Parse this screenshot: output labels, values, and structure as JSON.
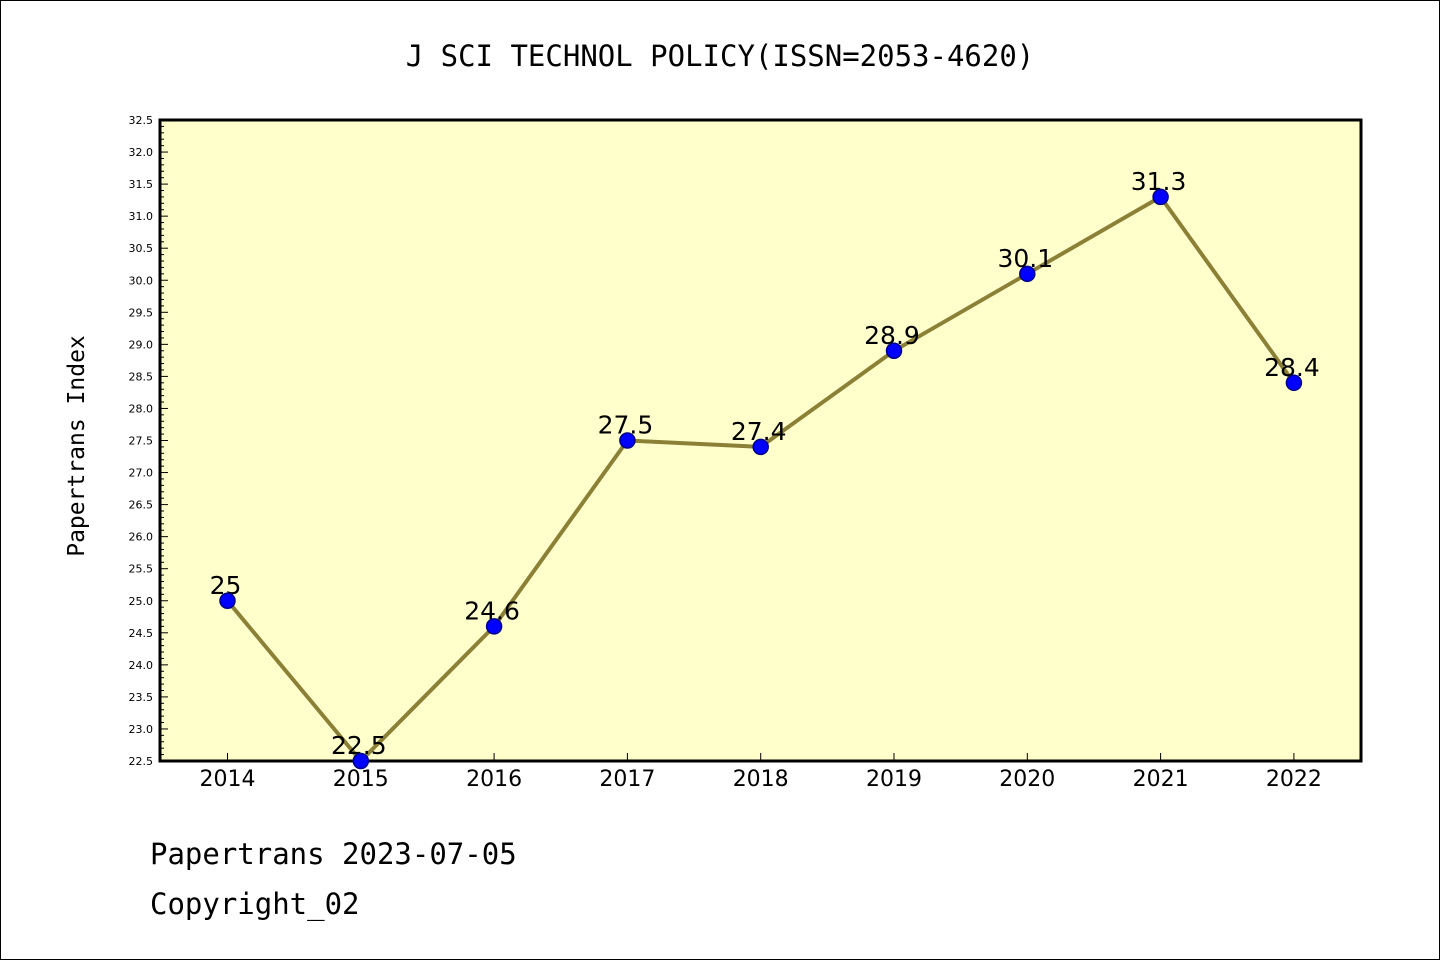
{
  "title": "J SCI TECHNOL POLICY(ISSN=2053-4620)",
  "footer": {
    "line1": "Papertrans 2023-07-05",
    "line2": "Copyright_02"
  },
  "colors": {
    "plot_bg": "#ffffcc",
    "line": "#8b8036",
    "marker": "#0000ff",
    "marker_edge": "#00008b"
  },
  "chart_data": {
    "type": "line",
    "title": "J SCI TECHNOL POLICY(ISSN=2053-4620)",
    "xlabel": "",
    "ylabel": "Papertrans Index",
    "categories": [
      "2014",
      "2015",
      "2016",
      "2017",
      "2018",
      "2019",
      "2020",
      "2021",
      "2022"
    ],
    "series": [
      {
        "values": [
          25,
          22.5,
          24.6,
          27.5,
          27.4,
          28.9,
          30.1,
          31.3,
          28.4
        ],
        "labels": [
          "25",
          "22.5",
          "24.6",
          "27.5",
          "27.4",
          "28.9",
          "30.1",
          "31.3",
          "28.4"
        ]
      }
    ],
    "ylim": [
      22.5,
      32.5
    ],
    "ytick_step": 0.5,
    "ytick_labels": [
      "22.5",
      "23.0",
      "23.5",
      "24.0",
      "24.5",
      "25.0",
      "25.5",
      "26.0",
      "26.5",
      "27.0",
      "27.5",
      "28.0",
      "28.5",
      "29.0",
      "29.5",
      "30.0",
      "30.5",
      "31.0",
      "31.5",
      "32.0",
      "32.5"
    ],
    "grid": false,
    "legend": "none"
  }
}
